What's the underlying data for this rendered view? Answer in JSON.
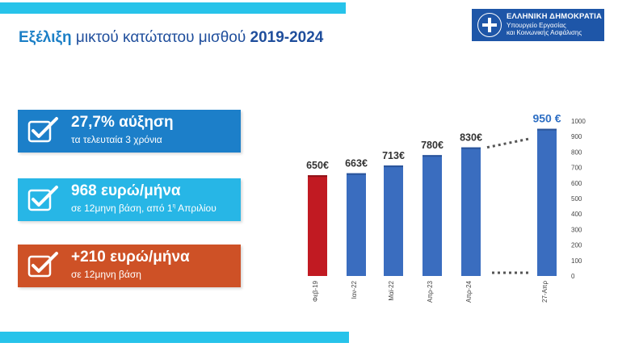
{
  "header": {
    "title_highlight": "Εξέλιξη",
    "title_middle": " μικτού κατώτατου μισθού ",
    "title_years": "2019-2024"
  },
  "logo": {
    "line1": "ΕΛΛΗΝΙΚΗ ΔΗΜΟΚΡΑΤΙΑ",
    "line2": "Υπουργείο Εργασίας",
    "line3": "και Κοινωνικής Ασφάλισης",
    "emblem_icon": "greek-flag-icon"
  },
  "cards": [
    {
      "headline": "27,7% αύξηση",
      "sub": "τα τελευταία 3 χρόνια",
      "color": "#1c7fc9",
      "icon": "checkbox-check-icon"
    },
    {
      "headline": "968 ευρώ/μήνα",
      "sub_before": "σε 12μηνη βάση, από 1",
      "sub_sup": "η",
      "sub_after": " Απριλίου",
      "color": "#27b6e6",
      "icon": "checkbox-check-icon"
    },
    {
      "headline": "+210 ευρώ/μήνα",
      "sub": "σε 12μηνη βάση",
      "color": "#ce5126",
      "icon": "checkbox-check-icon"
    }
  ],
  "colors": {
    "accent_bar": "#27c3ea",
    "bar_blue": "#3a6dbf",
    "bar_red": "#c11a22",
    "label_dark": "#333333",
    "label_highlight": "#2e6fc4"
  },
  "chart_data": {
    "type": "bar",
    "categories": [
      "Φεβ-19",
      "Ιαν-22",
      "Μαϊ-22",
      "Απρ-23",
      "Απρ-24",
      "27-Απρ"
    ],
    "values": [
      650,
      663,
      713,
      780,
      830,
      950
    ],
    "value_labels": [
      "650€",
      "663€",
      "713€",
      "780€",
      "830€",
      "950 €"
    ],
    "ylim": [
      0,
      1000
    ],
    "yticks": [
      0,
      100,
      200,
      300,
      400,
      500,
      600,
      700,
      800,
      900,
      1000
    ],
    "y_axis_position": "right",
    "highlight_first_bar": true,
    "gap_after_index": 4,
    "grid": false
  }
}
